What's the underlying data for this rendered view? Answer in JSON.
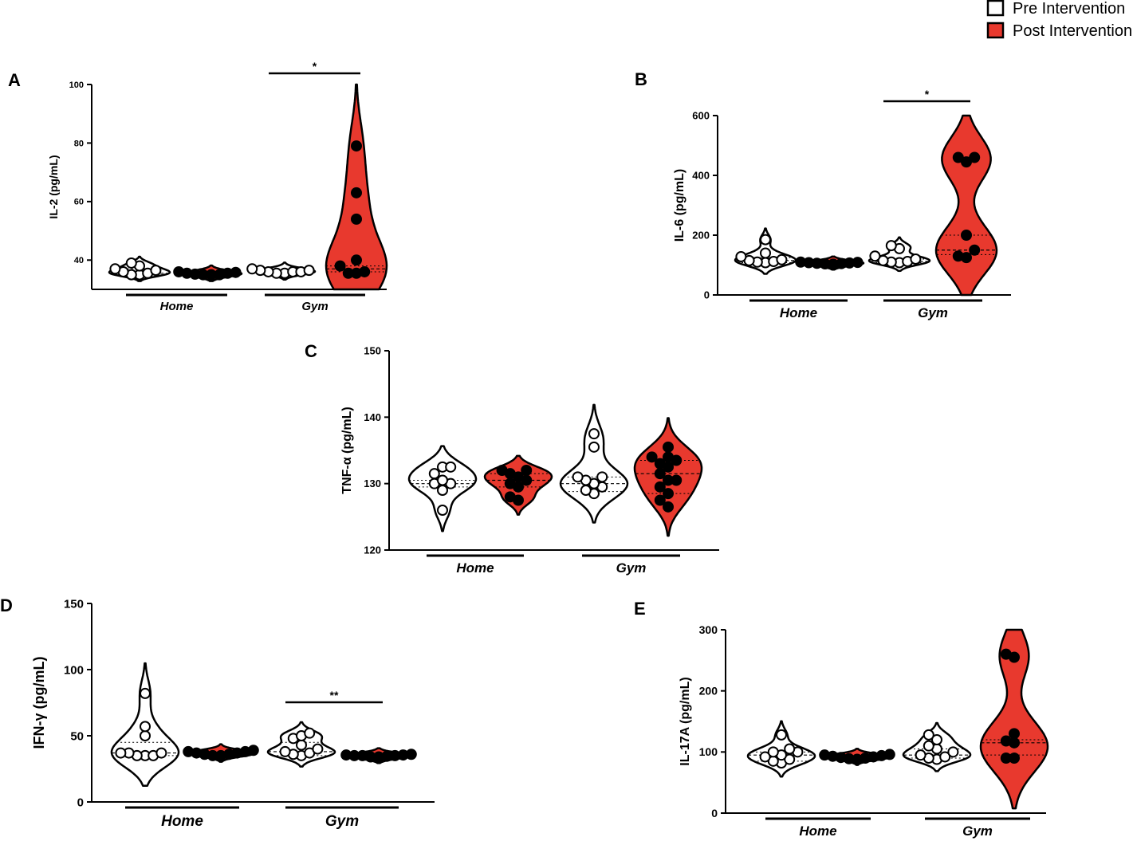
{
  "legend": {
    "placement": "top-right",
    "items": [
      {
        "label": "Pre Intervention",
        "fill": "#ffffff"
      },
      {
        "label": "Post Intervention",
        "fill": "#e8392e"
      }
    ]
  },
  "colors": {
    "pre": "#ffffff",
    "post": "#e8392e",
    "stroke": "#000000"
  },
  "chart_data": [
    {
      "panel": "A",
      "type": "violin",
      "ylabel": "IL-2 (pg/mL)",
      "ylim": [
        30,
        100
      ],
      "ticks": [
        40,
        60,
        80,
        100
      ],
      "groups": [
        "Home",
        "Gym"
      ],
      "series": [
        {
          "name": "Pre Intervention",
          "group": "Home",
          "median": 35.5,
          "q1": 35,
          "q3": 37,
          "points": [
            35,
            35,
            35.5,
            36,
            36.5,
            37,
            38,
            39
          ]
        },
        {
          "name": "Post Intervention",
          "group": "Home",
          "median": 35.3,
          "q1": 35,
          "q3": 35.5,
          "points": [
            35,
            35,
            35,
            35.2,
            35.5,
            35.5,
            35.8,
            36
          ]
        },
        {
          "name": "Pre Intervention",
          "group": "Gym",
          "median": 36,
          "q1": 35.5,
          "q3": 36.5,
          "points": [
            35.5,
            35.5,
            36,
            36,
            36,
            36.5,
            36.5,
            37
          ]
        },
        {
          "name": "Post Intervention",
          "group": "Gym",
          "median": 37,
          "q1": 36,
          "q3": 38,
          "points": [
            35.5,
            35.5,
            36,
            38,
            40,
            54,
            63,
            79
          ]
        }
      ],
      "significance": [
        {
          "group": "Gym",
          "label": "*"
        }
      ]
    },
    {
      "panel": "B",
      "type": "violin",
      "ylabel": "IL-6 (pg/mL)",
      "ylim": [
        0,
        600
      ],
      "ticks": [
        0,
        200,
        400,
        600
      ],
      "groups": [
        "Home",
        "Gym"
      ],
      "series": [
        {
          "name": "Pre Intervention",
          "group": "Home",
          "median": 115,
          "q1": 108,
          "q3": 125,
          "points": [
            108,
            110,
            112,
            115,
            118,
            128,
            140,
            185
          ]
        },
        {
          "name": "Post Intervention",
          "group": "Home",
          "median": 106,
          "q1": 104,
          "q3": 110,
          "points": [
            103,
            104,
            105,
            106,
            107,
            108,
            109,
            110
          ]
        },
        {
          "name": "Pre Intervention",
          "group": "Gym",
          "median": 112,
          "q1": 108,
          "q3": 120,
          "points": [
            108,
            110,
            112,
            115,
            120,
            130,
            155,
            165
          ]
        },
        {
          "name": "Post Intervention",
          "group": "Gym",
          "median": 150,
          "q1": 135,
          "q3": 200,
          "points": [
            125,
            130,
            150,
            200,
            445,
            460,
            460
          ]
        }
      ],
      "significance": [
        {
          "group": "Gym",
          "label": "*"
        }
      ]
    },
    {
      "panel": "C",
      "type": "violin",
      "ylabel": "TNF-α (pg/mL)",
      "ylim": [
        120,
        150
      ],
      "ticks": [
        120,
        130,
        140,
        150
      ],
      "groups": [
        "Home",
        "Gym"
      ],
      "series": [
        {
          "name": "Pre Intervention",
          "group": "Home",
          "median": 130,
          "q1": 129.5,
          "q3": 130.5,
          "points": [
            126,
            129,
            130,
            130,
            130.5,
            131.5,
            132.5,
            132.5
          ]
        },
        {
          "name": "Post Intervention",
          "group": "Home",
          "median": 130.5,
          "q1": 129.5,
          "q3": 131.5,
          "points": [
            127.5,
            128,
            129.5,
            130,
            130.5,
            131,
            131.5,
            132,
            132
          ]
        },
        {
          "name": "Pre Intervention",
          "group": "Gym",
          "median": 130,
          "q1": 128.8,
          "q3": 131,
          "points": [
            128.5,
            129,
            129.5,
            130,
            130.5,
            131,
            131,
            135.5,
            137.5
          ]
        },
        {
          "name": "Post Intervention",
          "group": "Gym",
          "median": 131.5,
          "q1": 128.5,
          "q3": 133.5,
          "points": [
            126.5,
            127.5,
            128.5,
            129.5,
            130.5,
            130.5,
            131.5,
            132.5,
            133,
            133.5,
            134,
            134,
            135.5
          ]
        }
      ],
      "significance": []
    },
    {
      "panel": "D",
      "type": "violin",
      "ylabel": "IFN-γ (pg/mL)",
      "ylim": [
        0,
        150
      ],
      "ticks": [
        0,
        50,
        100,
        150
      ],
      "groups": [
        "Home",
        "Gym"
      ],
      "series": [
        {
          "name": "Pre Intervention",
          "group": "Home",
          "median": 37,
          "q1": 35,
          "q3": 45,
          "points": [
            35,
            35,
            35,
            37,
            37,
            37,
            50,
            57,
            82
          ]
        },
        {
          "name": "Post Intervention",
          "group": "Home",
          "median": 36,
          "q1": 35,
          "q3": 37,
          "points": [
            35,
            35,
            36,
            36,
            37,
            37,
            38,
            38,
            39
          ]
        },
        {
          "name": "Pre Intervention",
          "group": "Gym",
          "median": 38,
          "q1": 35,
          "q3": 45,
          "points": [
            35,
            36,
            37,
            38,
            40,
            43,
            48,
            50,
            52
          ]
        },
        {
          "name": "Post Intervention",
          "group": "Gym",
          "median": 35,
          "q1": 34.5,
          "q3": 35.5,
          "points": [
            34,
            34,
            34.5,
            35,
            35,
            35,
            35.5,
            35.5,
            36
          ]
        }
      ],
      "significance": [
        {
          "group": "Gym",
          "label": "**"
        }
      ]
    },
    {
      "panel": "E",
      "type": "violin",
      "ylabel": "IL-17A (pg/mL)",
      "ylim": [
        0,
        300
      ],
      "ticks": [
        0,
        100,
        200,
        300
      ],
      "groups": [
        "Home",
        "Gym"
      ],
      "series": [
        {
          "name": "Pre Intervention",
          "group": "Home",
          "median": 95,
          "q1": 85,
          "q3": 100,
          "points": [
            82,
            85,
            88,
            92,
            95,
            100,
            100,
            105,
            128
          ]
        },
        {
          "name": "Post Intervention",
          "group": "Home",
          "median": 92,
          "q1": 90,
          "q3": 94,
          "points": [
            88,
            89,
            90,
            91,
            92,
            93,
            94,
            95,
            96
          ]
        },
        {
          "name": "Pre Intervention",
          "group": "Gym",
          "median": 95,
          "q1": 90,
          "q3": 105,
          "points": [
            88,
            90,
            92,
            95,
            100,
            105,
            110,
            120,
            128
          ]
        },
        {
          "name": "Post Intervention",
          "group": "Gym",
          "median": 115,
          "q1": 95,
          "q3": 120,
          "points": [
            90,
            90,
            115,
            118,
            130,
            255,
            260
          ]
        }
      ],
      "significance": []
    }
  ]
}
